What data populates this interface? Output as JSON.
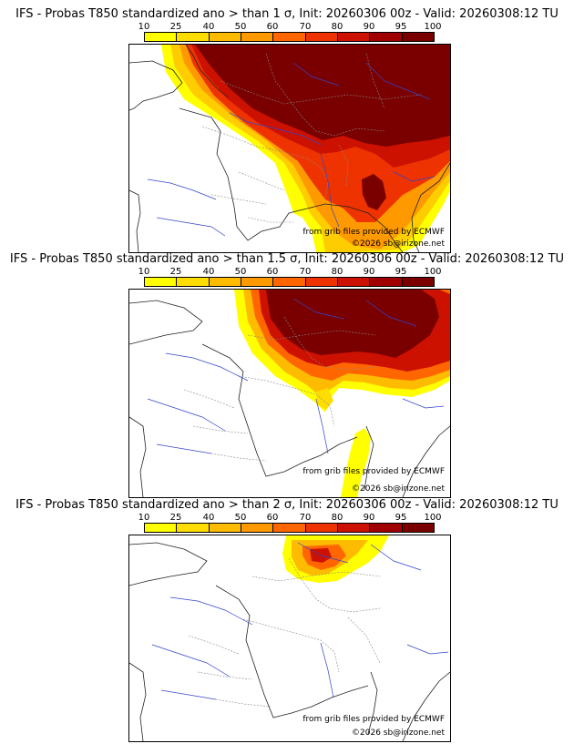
{
  "colorbar": {
    "ticks": [
      "10",
      "25",
      "40",
      "50",
      "60",
      "70",
      "80",
      "90",
      "95",
      "100"
    ],
    "colors": [
      "#ffff00",
      "#ffdd00",
      "#ffbb00",
      "#ff9900",
      "#ff6600",
      "#ee3300",
      "#cc1100",
      "#a00000",
      "#7a0000"
    ]
  },
  "panels": [
    {
      "title": "IFS - Probas T850  standardized ano > than 1 σ, Init: 20260306 00z - Valid: 20260308:12 TU",
      "credit_line1": "from grib files provided by ECMWF",
      "credit_line2": "©2026 sb@irizone.net"
    },
    {
      "title": "IFS - Probas T850  standardized ano > than 1.5 σ, Init: 20260306 00z - Valid: 20260308:12 TU",
      "credit_line1": "from grib files provided by ECMWF",
      "credit_line2": "©2026 sb@irizone.net"
    },
    {
      "title": "IFS - Probas T850  standardized ano > than 2 σ, Init: 20260306 00z - Valid: 20260308:12 TU",
      "credit_line1": "from grib files provided by ECMWF",
      "credit_line2": "©2026 sb@irizone.net"
    }
  ]
}
